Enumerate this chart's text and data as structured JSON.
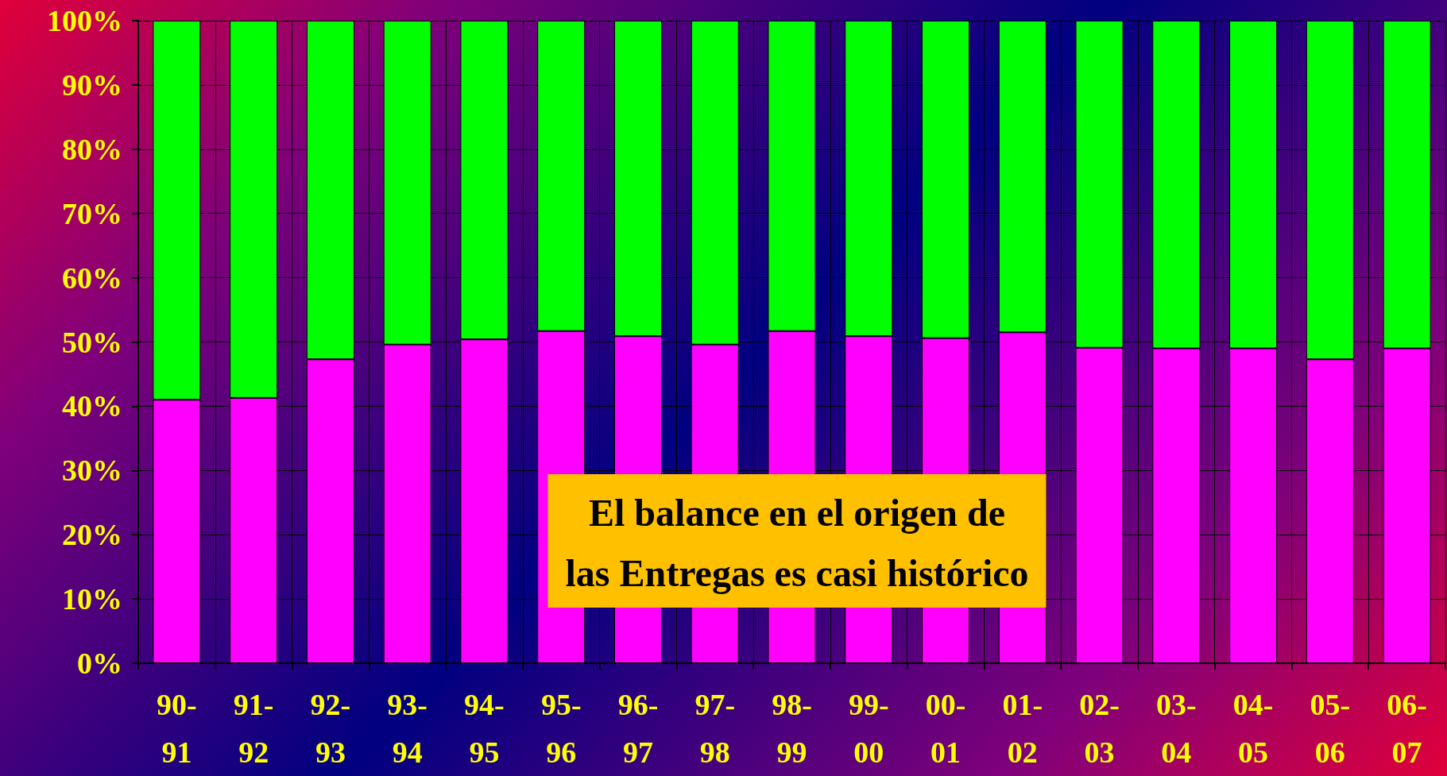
{
  "chart_data": {
    "type": "bar",
    "stacked": true,
    "grid": true,
    "categories": [
      "90-91",
      "91-92",
      "92-93",
      "93-94",
      "94-95",
      "95-96",
      "96-97",
      "97-98",
      "98-99",
      "99-00",
      "00-01",
      "01-02",
      "02-03",
      "03-04",
      "04-05",
      "05-06",
      "06-07"
    ],
    "series": [
      {
        "color": "#ff00ff",
        "values": [
          41.0,
          41.3,
          47.3,
          49.6,
          50.4,
          51.7,
          50.9,
          49.6,
          51.7,
          50.9,
          50.6,
          51.5,
          49.1,
          49.0,
          49.0,
          47.3,
          49.0
        ]
      },
      {
        "color": "#00ff00",
        "values": [
          59.0,
          58.7,
          52.7,
          50.4,
          49.6,
          48.3,
          49.1,
          50.4,
          48.3,
          49.1,
          49.4,
          48.5,
          50.9,
          51.0,
          51.0,
          52.7,
          51.0
        ]
      }
    ],
    "ylim": [
      0,
      100
    ],
    "yticks": [
      {
        "value": 0,
        "label": "0%"
      },
      {
        "value": 10,
        "label": "10%"
      },
      {
        "value": 20,
        "label": "20%"
      },
      {
        "value": 30,
        "label": "30%"
      },
      {
        "value": 40,
        "label": "40%"
      },
      {
        "value": 50,
        "label": "50%"
      },
      {
        "value": 60,
        "label": "60%"
      },
      {
        "value": 70,
        "label": "70%"
      },
      {
        "value": 80,
        "label": "80%"
      },
      {
        "value": 90,
        "label": "90%"
      },
      {
        "value": 100,
        "label": "100%"
      }
    ],
    "annotations": [
      "El balance en el origen de\nlas Entregas es casi histórico"
    ]
  }
}
